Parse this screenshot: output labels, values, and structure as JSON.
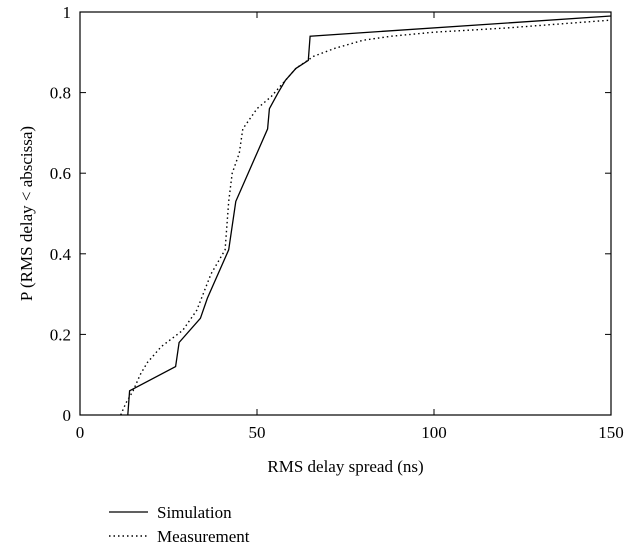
{
  "chart_data": {
    "type": "line",
    "xlabel": "RMS delay spread (ns)",
    "ylabel": "P (RMS delay < abscissa)",
    "xlim": [
      0,
      150
    ],
    "ylim": [
      0,
      1
    ],
    "xticks": [
      0,
      50,
      100,
      150
    ],
    "xtick_labels": [
      "0",
      "50",
      "100",
      "150"
    ],
    "yticks": [
      0,
      0.2,
      0.4,
      0.6,
      0.8,
      1
    ],
    "ytick_labels": [
      "0",
      "0.2",
      "0.4",
      "0.6",
      "0.8",
      "1"
    ],
    "grid": false,
    "legend_position": "bottom-left, below the plot",
    "series": [
      {
        "name": "Simulation",
        "style": "solid",
        "color": "#000000",
        "x": [
          13.5,
          14,
          27,
          28,
          34,
          36,
          42,
          44,
          47,
          50,
          53,
          53.5,
          56,
          58,
          61,
          64.5,
          65,
          150
        ],
        "y": [
          0,
          0.06,
          0.12,
          0.18,
          0.24,
          0.29,
          0.41,
          0.53,
          0.59,
          0.65,
          0.71,
          0.76,
          0.8,
          0.83,
          0.86,
          0.88,
          0.94,
          0.99
        ]
      },
      {
        "name": "Measurement",
        "style": "dotted",
        "color": "#000000",
        "x": [
          11.5,
          13,
          15,
          17,
          19,
          23,
          29,
          33,
          37,
          41,
          42,
          43,
          45,
          46,
          50,
          54,
          57,
          61,
          66,
          72,
          80,
          88,
          100,
          120,
          150
        ],
        "y": [
          0,
          0.03,
          0.06,
          0.1,
          0.13,
          0.17,
          0.21,
          0.26,
          0.35,
          0.41,
          0.53,
          0.6,
          0.65,
          0.71,
          0.76,
          0.79,
          0.82,
          0.86,
          0.89,
          0.91,
          0.93,
          0.94,
          0.95,
          0.96,
          0.98
        ]
      }
    ]
  }
}
